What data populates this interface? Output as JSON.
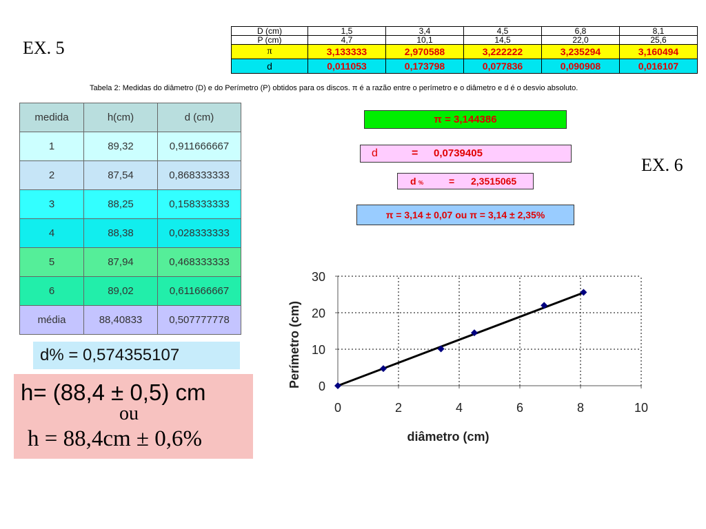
{
  "labels": {
    "ex5": "EX. 5",
    "ex6": "EX. 6"
  },
  "top_table": {
    "rows": [
      [
        "D (cm)",
        "1,5",
        "3,4",
        "4,5",
        "6,8",
        "8,1"
      ],
      [
        "P (cm)",
        "4,7",
        "10,1",
        "14,5",
        "22,0",
        "25,6"
      ],
      [
        "π",
        "3,133333",
        "2,970588",
        "3,222222",
        "3,235294",
        "3,160494"
      ],
      [
        "d",
        "0,011053",
        "0,173798",
        "0,077836",
        "0,090908",
        "0,016107"
      ]
    ],
    "caption": "Tabela 2: Medidas do diâmetro (D) e do Perímetro (P)  obtidos para os discos. π é a razão entre o perímetro e o diâmetro e d é o desvio absoluto."
  },
  "height_table": {
    "headers": [
      "medida",
      "h(cm)",
      "d (cm)"
    ],
    "rows": [
      [
        "1",
        "89,32",
        "0,911666667"
      ],
      [
        "2",
        "87,54",
        "0,868333333"
      ],
      [
        "3",
        "88,25",
        "0,158333333"
      ],
      [
        "4",
        "88,38",
        "0,028333333"
      ],
      [
        "5",
        "87,94",
        "0,468333333"
      ],
      [
        "6",
        "89,02",
        "0,611666667"
      ],
      [
        "média",
        "88,40833",
        "0,507777778"
      ]
    ],
    "row_colors": [
      "#b9dede",
      "#ccffff",
      "#c6e5f7",
      "#33ffff",
      "#11eeee",
      "#55ee99",
      "#22eeaa",
      "#c4c4ff"
    ]
  },
  "height_results": {
    "dpercent": "d% = 0,574355107",
    "h_line": "h= (88,4 ± 0,5) cm",
    "ou": "ou",
    "h_alt": "h = 88,4cm ± 0,6%"
  },
  "pi_results": {
    "pi_mean": "π = 3,144386",
    "d_label": "d",
    "d_eq": "=",
    "d_value": "0,0739405",
    "dp_label": "d",
    "dp_sub": "%",
    "dp_eq": "=",
    "dp_value": "2,3515065",
    "final": "π = 3,14 ± 0,07 ou π = 3,14 ± 2,35%"
  },
  "chart_data": {
    "type": "scatter",
    "title": "",
    "xlabel": "diâmetro (cm)",
    "ylabel": "Perímetro (cm)",
    "xlim": [
      0,
      10
    ],
    "ylim": [
      0,
      30
    ],
    "xticks": [
      "0",
      "2",
      "4",
      "6",
      "8",
      "10"
    ],
    "yticks": [
      "0",
      "10",
      "20",
      "30"
    ],
    "grid": true,
    "points": [
      {
        "x": 0,
        "y": 0
      },
      {
        "x": 1.5,
        "y": 4.7
      },
      {
        "x": 3.4,
        "y": 10.1
      },
      {
        "x": 4.5,
        "y": 14.5
      },
      {
        "x": 6.8,
        "y": 22.0
      },
      {
        "x": 8.1,
        "y": 25.6
      }
    ],
    "trendline": {
      "x": [
        0,
        8.1
      ],
      "y": [
        0,
        25.5
      ]
    },
    "marker_color": "#000080",
    "line_color": "#000000"
  }
}
